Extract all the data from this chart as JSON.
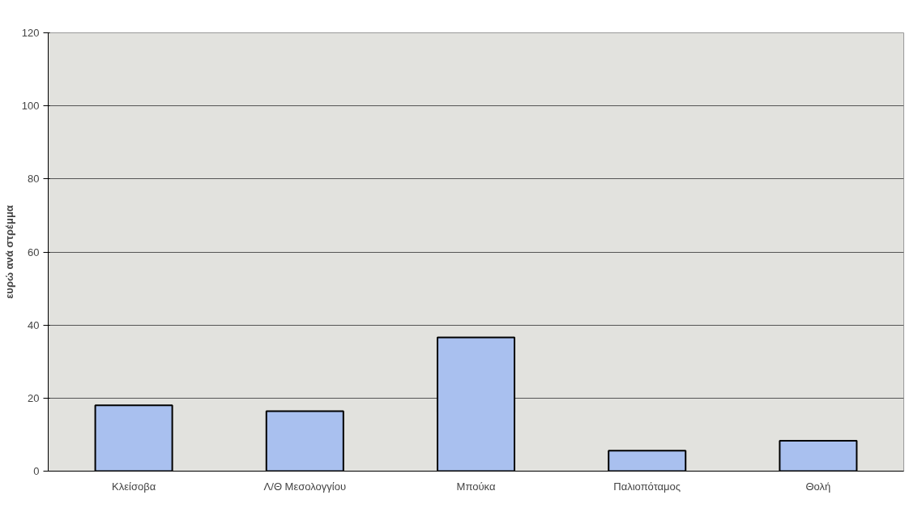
{
  "chart_data": {
    "type": "bar",
    "ylabel": "ευρώ ανά στρέμμα",
    "categories": [
      "Κλείσοβα",
      "Λ/Θ Μεσολογγίου",
      "Μπούκα",
      "Παλιοπόταμος",
      "Θολή"
    ],
    "values": [
      18,
      16.4,
      36.6,
      5.6,
      8.3
    ],
    "color": "#a9c0ef",
    "ylim": [
      0,
      120
    ],
    "yticks": [
      0,
      20,
      40,
      60,
      80,
      100,
      120
    ],
    "grid": "y"
  }
}
